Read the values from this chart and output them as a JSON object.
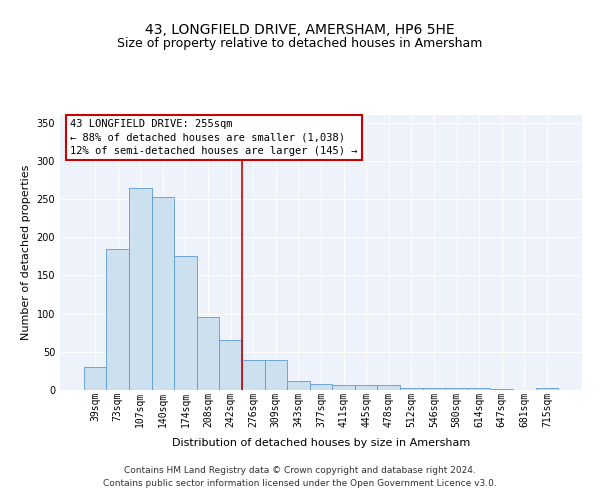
{
  "title": "43, LONGFIELD DRIVE, AMERSHAM, HP6 5HE",
  "subtitle": "Size of property relative to detached houses in Amersham",
  "xlabel": "Distribution of detached houses by size in Amersham",
  "ylabel": "Number of detached properties",
  "categories": [
    "39sqm",
    "73sqm",
    "107sqm",
    "140sqm",
    "174sqm",
    "208sqm",
    "242sqm",
    "276sqm",
    "309sqm",
    "343sqm",
    "377sqm",
    "411sqm",
    "445sqm",
    "478sqm",
    "512sqm",
    "546sqm",
    "580sqm",
    "614sqm",
    "647sqm",
    "681sqm",
    "715sqm"
  ],
  "bar_heights": [
    30,
    185,
    265,
    252,
    176,
    95,
    65,
    39,
    39,
    12,
    8,
    6,
    7,
    6,
    3,
    3,
    3,
    3,
    1,
    0,
    2
  ],
  "bar_color": "#cce0f0",
  "bar_edge_color": "#5b9bd5",
  "vline_x": 6.5,
  "vline_color": "#cc0000",
  "annotation_text": "43 LONGFIELD DRIVE: 255sqm\n← 88% of detached houses are smaller (1,038)\n12% of semi-detached houses are larger (145) →",
  "annotation_box_color": "#ffffff",
  "annotation_box_edge": "#cc0000",
  "ylim": [
    0,
    360
  ],
  "yticks": [
    0,
    50,
    100,
    150,
    200,
    250,
    300,
    350
  ],
  "background_color": "#eef2fa",
  "footer": "Contains HM Land Registry data © Crown copyright and database right 2024.\nContains public sector information licensed under the Open Government Licence v3.0.",
  "title_fontsize": 10,
  "subtitle_fontsize": 9,
  "xlabel_fontsize": 8,
  "ylabel_fontsize": 8,
  "tick_fontsize": 7,
  "annotation_fontsize": 7.5,
  "footer_fontsize": 6.5
}
